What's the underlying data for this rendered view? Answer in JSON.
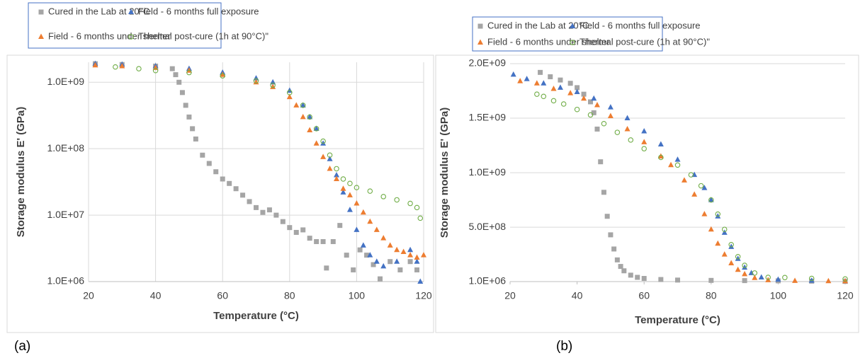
{
  "chart_data": [
    {
      "type": "scatter",
      "label": "(a)",
      "x_label": "Temperature (°C)",
      "y_label": "Storage modulus E' (GPa)",
      "log_scale": true,
      "grid": true,
      "xgrid": true,
      "xlim": [
        20,
        120
      ],
      "xticks": [
        20,
        40,
        60,
        80,
        100,
        120
      ],
      "ylim": [
        1000000,
        2000000000
      ],
      "yticks": [
        {
          "value": 1000000,
          "label": "1.0E+06"
        },
        {
          "value": 10000000,
          "label": "1.0E+07"
        },
        {
          "value": 100000000,
          "label": "1.0E+08"
        },
        {
          "value": 1000000000,
          "label": "1.0E+09"
        }
      ],
      "series": [
        {
          "name": "Cured in the Lab at 20°C",
          "color": "#a5a5a5",
          "marker": "square",
          "x": [
            22,
            30,
            40,
            45,
            46,
            47,
            48,
            49,
            50,
            51,
            52,
            54,
            56,
            58,
            60,
            62,
            64,
            66,
            68,
            70,
            72,
            74,
            76,
            78,
            80,
            82,
            84,
            86,
            88,
            90,
            91,
            93,
            95,
            97,
            99,
            101,
            103,
            105,
            107,
            110,
            113,
            116,
            118
          ],
          "values": [
            1900000000,
            1850000000,
            1750000000,
            1600000000,
            1300000000,
            1000000000,
            700000000,
            450000000,
            300000000,
            200000000,
            140000000,
            80000000,
            60000000,
            45000000,
            35000000,
            30000000,
            25000000,
            20000000,
            16000000,
            13000000,
            11000000,
            12000000,
            10000000,
            8000000,
            6500000,
            5500000,
            6000000,
            4500000,
            4000000,
            4000000,
            1600000,
            4000000,
            7000000,
            2500000,
            1500000,
            3000000,
            2500000,
            1800000,
            1100000,
            2000000,
            1500000,
            2000000,
            1500000
          ]
        },
        {
          "name": "Field - 6 months full exposure",
          "color": "#4472c4",
          "marker": "triangle",
          "x": [
            22,
            30,
            40,
            50,
            60,
            70,
            75,
            80,
            84,
            86,
            88,
            90,
            92,
            94,
            96,
            98,
            100,
            102,
            104,
            106,
            108,
            112,
            116,
            118,
            119
          ],
          "values": [
            1900000000,
            1850000000,
            1750000000,
            1600000000,
            1400000000,
            1150000000,
            1000000000,
            750000000,
            450000000,
            300000000,
            200000000,
            120000000,
            70000000,
            40000000,
            22000000,
            12000000,
            6000000,
            3500000,
            2500000,
            2000000,
            1700000,
            2000000,
            3000000,
            2000000,
            1000000
          ]
        },
        {
          "name": "Field - 6 months under shelter",
          "color": "#ed7d31",
          "marker": "triangle",
          "x": [
            22,
            30,
            40,
            50,
            60,
            70,
            75,
            80,
            82,
            84,
            86,
            88,
            90,
            92,
            94,
            96,
            98,
            100,
            102,
            104,
            106,
            108,
            110,
            112,
            114,
            116,
            118,
            120
          ],
          "values": [
            1800000000,
            1750000000,
            1650000000,
            1500000000,
            1300000000,
            1000000000,
            850000000,
            600000000,
            450000000,
            300000000,
            190000000,
            120000000,
            75000000,
            50000000,
            35000000,
            25000000,
            20000000,
            15000000,
            11000000,
            8000000,
            6000000,
            4500000,
            3500000,
            3000000,
            2800000,
            2500000,
            2300000,
            2500000
          ]
        },
        {
          "name": "Thermal post-cure (1h at 90°C)\"",
          "color": "#70ad47",
          "marker": "circle-open",
          "x": [
            28,
            35,
            40,
            50,
            60,
            70,
            75,
            80,
            84,
            86,
            88,
            90,
            92,
            94,
            96,
            98,
            100,
            104,
            108,
            112,
            116,
            118,
            119
          ],
          "values": [
            1700000000,
            1600000000,
            1500000000,
            1400000000,
            1250000000,
            1050000000,
            900000000,
            700000000,
            450000000,
            300000000,
            200000000,
            130000000,
            80000000,
            50000000,
            35000000,
            30000000,
            26000000,
            23000000,
            19000000,
            17000000,
            15000000,
            13000000,
            9000000
          ]
        }
      ]
    },
    {
      "type": "scatter",
      "label": "(b)",
      "x_label": "Temperature (°C)",
      "y_label": "Storage modulus E' (GPa)",
      "log_scale": false,
      "grid": true,
      "xgrid": false,
      "xlim": [
        20,
        120
      ],
      "xticks": [
        20,
        40,
        60,
        80,
        100,
        120
      ],
      "ylim": [
        1000000,
        2000000000
      ],
      "yticks": [
        {
          "value": 1000000,
          "label": "1.0E+06"
        },
        {
          "value": 500000000,
          "label": "5.0E+08"
        },
        {
          "value": 1000000000,
          "label": "1.0E+09"
        },
        {
          "value": 1500000000,
          "label": "1.5E+09"
        },
        {
          "value": 2000000000,
          "label": "2.0E+09"
        }
      ],
      "series": [
        {
          "name": "Cured in the Lab at 20°C",
          "color": "#a5a5a5",
          "marker": "square",
          "x": [
            29,
            32,
            35,
            38,
            40,
            42,
            44,
            45,
            46,
            47,
            48,
            49,
            50,
            51,
            52,
            53,
            54,
            56,
            58,
            60,
            65,
            70,
            80,
            90,
            100,
            110,
            120
          ],
          "values": [
            1920000000,
            1880000000,
            1850000000,
            1820000000,
            1780000000,
            1720000000,
            1650000000,
            1550000000,
            1400000000,
            1100000000,
            820000000,
            600000000,
            430000000,
            300000000,
            200000000,
            140000000,
            100000000,
            60000000,
            40000000,
            30000000,
            20000000,
            15000000,
            12000000,
            10000000,
            8000000,
            5000000,
            3000000
          ]
        },
        {
          "name": "Field - 6 months full exposure",
          "color": "#4472c4",
          "marker": "triangle",
          "x": [
            21,
            25,
            30,
            35,
            40,
            45,
            50,
            55,
            60,
            65,
            70,
            75,
            78,
            80,
            82,
            84,
            86,
            88,
            90,
            92,
            95,
            100,
            110,
            120
          ],
          "values": [
            1900000000,
            1860000000,
            1820000000,
            1780000000,
            1740000000,
            1680000000,
            1600000000,
            1500000000,
            1380000000,
            1260000000,
            1120000000,
            980000000,
            860000000,
            750000000,
            600000000,
            450000000,
            320000000,
            210000000,
            130000000,
            80000000,
            40000000,
            20000000,
            10000000,
            5000000
          ]
        },
        {
          "name": "Field - 6 months under shelter",
          "color": "#ed7d31",
          "marker": "triangle",
          "x": [
            23,
            28,
            33,
            38,
            42,
            46,
            50,
            55,
            60,
            65,
            68,
            72,
            75,
            78,
            80,
            82,
            84,
            86,
            88,
            90,
            93,
            97,
            105,
            115,
            120
          ],
          "values": [
            1840000000,
            1820000000,
            1770000000,
            1730000000,
            1680000000,
            1620000000,
            1520000000,
            1400000000,
            1280000000,
            1150000000,
            1070000000,
            930000000,
            800000000,
            620000000,
            480000000,
            350000000,
            250000000,
            170000000,
            110000000,
            70000000,
            35000000,
            15000000,
            8000000,
            6000000,
            5000000
          ]
        },
        {
          "name": "Thermal post-cure (1h at 90°C)\"",
          "color": "#70ad47",
          "marker": "circle-open",
          "x": [
            28,
            30,
            33,
            36,
            40,
            44,
            48,
            52,
            56,
            60,
            65,
            70,
            74,
            77,
            80,
            82,
            84,
            86,
            88,
            90,
            93,
            97,
            102,
            110,
            120
          ],
          "values": [
            1720000000,
            1700000000,
            1660000000,
            1630000000,
            1580000000,
            1530000000,
            1450000000,
            1370000000,
            1300000000,
            1220000000,
            1140000000,
            1070000000,
            980000000,
            880000000,
            750000000,
            620000000,
            480000000,
            340000000,
            230000000,
            150000000,
            80000000,
            40000000,
            38000000,
            30000000,
            25000000
          ]
        }
      ]
    }
  ]
}
